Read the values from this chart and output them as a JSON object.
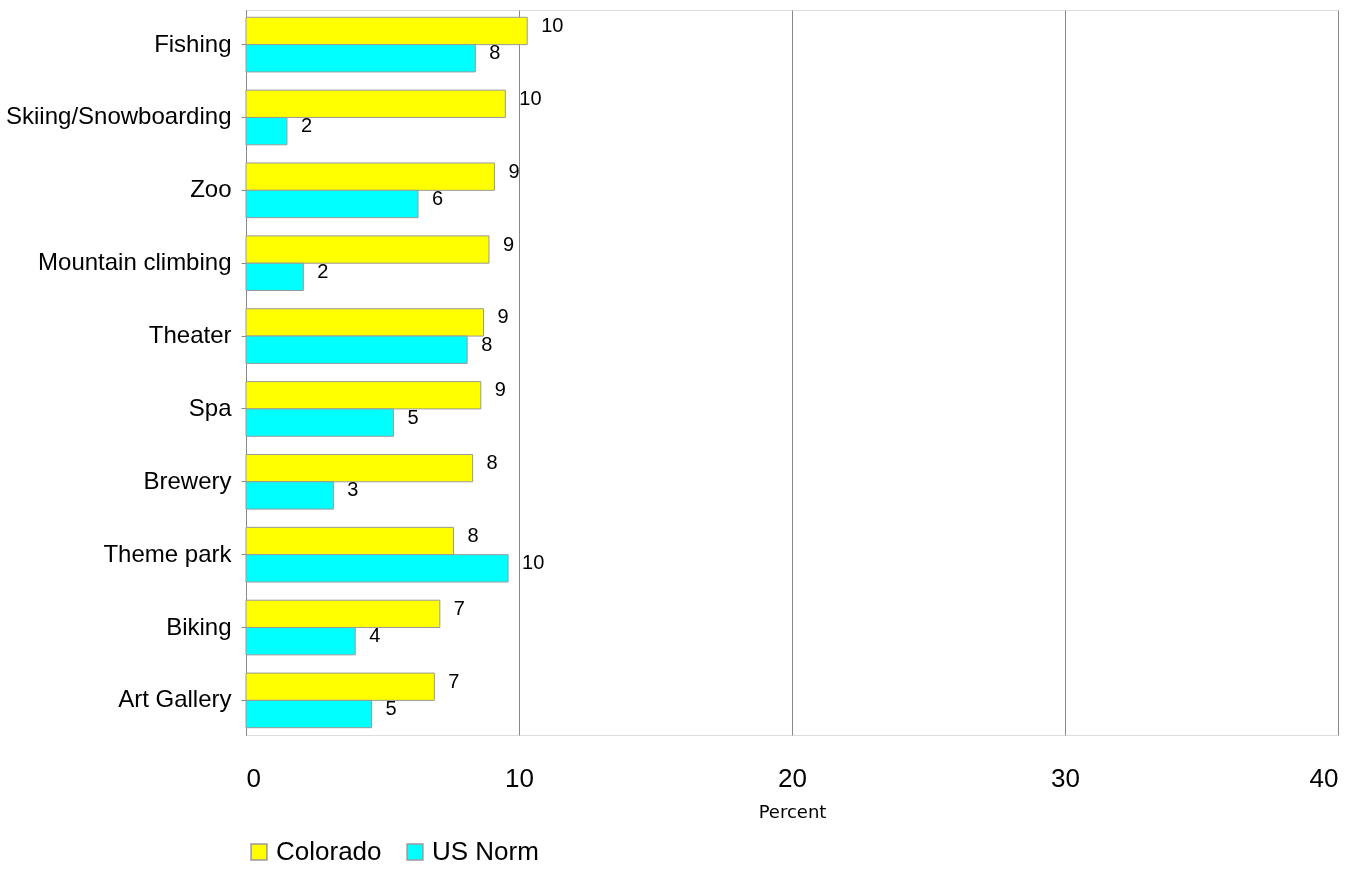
{
  "chart_data": {
    "type": "bar",
    "orientation": "horizontal",
    "xlabel": "Percent",
    "categories": [
      "Fishing",
      "Skiing/Snowboarding",
      "Zoo",
      "Mountain climbing",
      "Theater",
      "Spa",
      "Brewery",
      "Theme park",
      "Biking",
      "Art Gallery"
    ],
    "series": [
      {
        "name": "Colorado",
        "color": "#ffff00",
        "values": [
          10.3,
          9.5,
          9.1,
          8.9,
          8.7,
          8.6,
          8.3,
          7.6,
          7.1,
          6.9
        ],
        "value_labels": [
          "10",
          "10",
          "9",
          "9",
          "9",
          "9",
          "8",
          "8",
          "7",
          "7"
        ]
      },
      {
        "name": "US Norm",
        "color": "#00ffff",
        "values": [
          8.4,
          1.5,
          6.3,
          2.1,
          8.1,
          5.4,
          3.2,
          9.6,
          4.0,
          4.6
        ],
        "value_labels": [
          "8",
          "2",
          "6",
          "2",
          "8",
          "5",
          "3",
          "10",
          "4",
          "5"
        ]
      }
    ],
    "xlim": [
      0,
      40
    ],
    "xticks": [
      0,
      10,
      20,
      30,
      40
    ],
    "grid": "x",
    "legend": "bottom"
  }
}
